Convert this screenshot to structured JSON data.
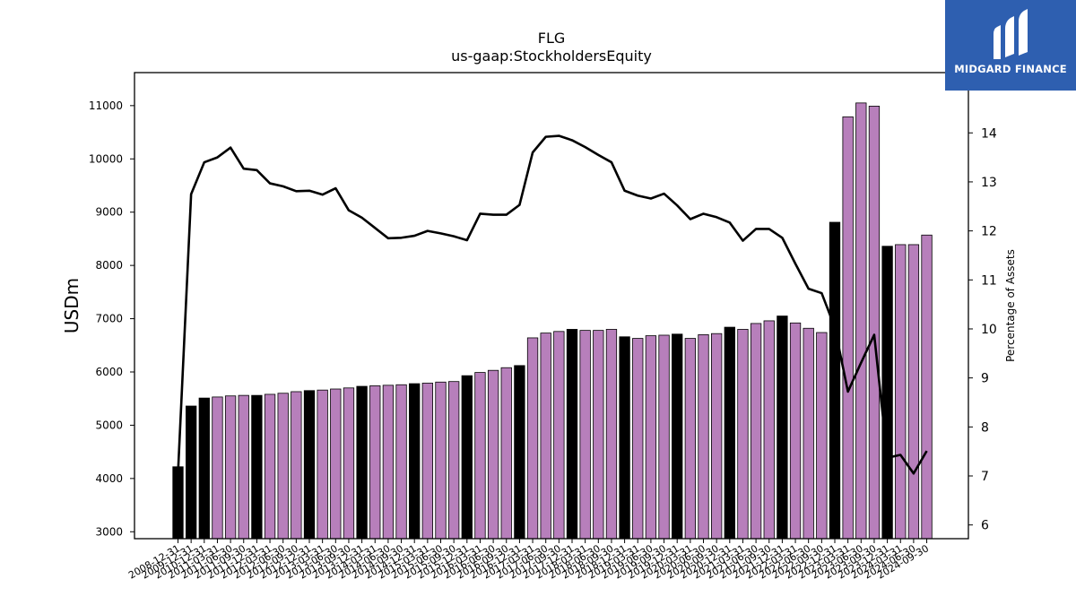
{
  "logo": {
    "text": "MIDGARD FINANCE"
  },
  "chart_data": {
    "type": "bar",
    "title": "FLG",
    "subtitle": "us-gaap:StockholdersEquity",
    "ylabel": "USDm",
    "y2label": "Percentage of Assets",
    "ylim": [
      2870,
      11620
    ],
    "y2lim": [
      5.72,
      15.23
    ],
    "yticks": [
      3000,
      4000,
      5000,
      6000,
      7000,
      8000,
      9000,
      10000,
      11000
    ],
    "y2ticks": [
      6,
      7,
      8,
      9,
      10,
      11,
      12,
      13,
      14
    ],
    "grid": false,
    "colors": {
      "annual_bar": "#000000",
      "quarter_bar": "#b77fbb",
      "line": "#000000"
    },
    "categories": [
      "2008-12-31",
      "2009-12-31",
      "2010-12-31",
      "2011-03-31",
      "2011-06-30",
      "2011-09-30",
      "2011-12-31",
      "2012-03-31",
      "2012-06-30",
      "2012-09-30",
      "2012-12-31",
      "2013-03-31",
      "2013-06-30",
      "2013-09-30",
      "2013-12-31",
      "2014-03-31",
      "2014-06-30",
      "2014-09-30",
      "2014-12-31",
      "2015-03-31",
      "2015-06-30",
      "2015-09-30",
      "2015-12-31",
      "2016-03-31",
      "2016-06-30",
      "2016-09-30",
      "2016-12-31",
      "2017-03-31",
      "2017-06-30",
      "2017-09-30",
      "2017-12-31",
      "2018-03-31",
      "2018-06-30",
      "2018-09-30",
      "2018-12-31",
      "2019-03-31",
      "2019-06-30",
      "2019-09-30",
      "2019-12-31",
      "2020-03-31",
      "2020-06-30",
      "2020-09-30",
      "2020-12-31",
      "2021-03-31",
      "2021-06-30",
      "2021-09-30",
      "2021-12-31",
      "2022-03-31",
      "2022-06-30",
      "2022-09-30",
      "2022-12-31",
      "2023-03-31",
      "2023-06-30",
      "2023-09-30",
      "2023-12-31",
      "2024-03-31",
      "2024-06-30",
      "2024-09-30"
    ],
    "series": [
      {
        "type": "bar",
        "values": [
          4220,
          5360,
          5510,
          5530,
          5550,
          5560,
          5560,
          5580,
          5600,
          5630,
          5650,
          5660,
          5680,
          5700,
          5730,
          5740,
          5750,
          5760,
          5780,
          5790,
          5810,
          5820,
          5930,
          5990,
          6030,
          6080,
          6120,
          6640,
          6730,
          6760,
          6800,
          6780,
          6780,
          6800,
          6660,
          6630,
          6680,
          6690,
          6710,
          6630,
          6700,
          6720,
          6840,
          6800,
          6910,
          6960,
          7050,
          6920,
          6820,
          6740,
          8810,
          10790,
          11050,
          10990,
          8360,
          8390,
          8390,
          8570
        ],
        "kind": [
          "annual",
          "annual",
          "annual",
          "q",
          "q",
          "q",
          "annual",
          "q",
          "q",
          "q",
          "annual",
          "q",
          "q",
          "q",
          "annual",
          "q",
          "q",
          "q",
          "annual",
          "q",
          "q",
          "q",
          "annual",
          "q",
          "q",
          "q",
          "annual",
          "q",
          "q",
          "q",
          "annual",
          "q",
          "q",
          "q",
          "annual",
          "q",
          "q",
          "q",
          "annual",
          "q",
          "q",
          "q",
          "annual",
          "q",
          "q",
          "q",
          "annual",
          "q",
          "q",
          "q",
          "annual",
          "q",
          "q",
          "q",
          "annual",
          "q",
          "q",
          "q"
        ]
      },
      {
        "type": "line",
        "axis": "right",
        "values": [
          7.05,
          12.75,
          13.4,
          13.5,
          13.7,
          13.27,
          13.24,
          12.97,
          12.91,
          12.81,
          12.82,
          12.74,
          12.87,
          12.42,
          12.27,
          12.06,
          11.85,
          11.86,
          11.9,
          12.0,
          11.95,
          11.89,
          11.81,
          12.35,
          12.33,
          12.33,
          12.53,
          13.6,
          13.92,
          13.94,
          13.85,
          13.71,
          13.55,
          13.4,
          12.82,
          12.72,
          12.66,
          12.76,
          12.52,
          12.24,
          12.35,
          12.28,
          12.17,
          11.8,
          12.04,
          12.04,
          11.86,
          11.33,
          10.82,
          10.73,
          10.03,
          8.72,
          9.31,
          9.88,
          7.37,
          7.43,
          7.05,
          7.51
        ]
      }
    ]
  }
}
